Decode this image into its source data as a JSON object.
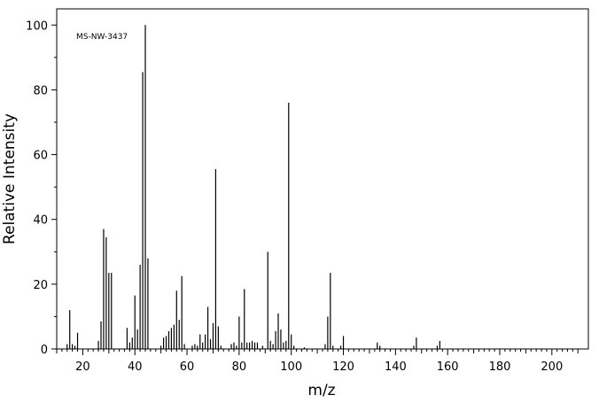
{
  "chart_data": {
    "type": "bar",
    "title": "",
    "annotation": "MS-NW-3437",
    "xlabel": "m/z",
    "ylabel": "Relative Intensity",
    "xlim": [
      10,
      214
    ],
    "ylim": [
      0,
      105
    ],
    "x_ticks": [
      20,
      40,
      60,
      80,
      100,
      120,
      140,
      160,
      180,
      200
    ],
    "y_ticks": [
      0,
      20,
      40,
      60,
      80,
      100
    ],
    "grid": false,
    "legend": "none",
    "colors": {
      "bars": "#000000",
      "axes": "#000000",
      "background": "#ffffff"
    },
    "peaks": {
      "x": [
        14,
        15,
        16,
        17,
        18,
        26,
        27,
        28,
        29,
        30,
        31,
        37,
        38,
        39,
        40,
        41,
        42,
        43,
        44,
        45,
        50,
        51,
        52,
        53,
        54,
        55,
        56,
        57,
        58,
        59,
        62,
        63,
        64,
        65,
        66,
        67,
        68,
        69,
        70,
        71,
        72,
        73,
        77,
        78,
        79,
        80,
        81,
        82,
        83,
        84,
        85,
        86,
        87,
        89,
        91,
        92,
        93,
        94,
        95,
        96,
        97,
        98,
        99,
        100,
        101,
        105,
        113,
        114,
        115,
        116,
        119,
        120,
        133,
        134,
        147,
        148,
        156,
        157
      ],
      "y": [
        1.5,
        12,
        1.5,
        1,
        5,
        2.5,
        8.5,
        37,
        34.5,
        23.5,
        23.5,
        6.5,
        2,
        3.5,
        16.5,
        6,
        26,
        85.5,
        100,
        28,
        1,
        3.5,
        4,
        5.5,
        6.5,
        7.5,
        18,
        9,
        22.5,
        1.5,
        1,
        1.5,
        1,
        4.5,
        2,
        4.5,
        13,
        3,
        8,
        55.5,
        7,
        1,
        1.5,
        2,
        1,
        10,
        2,
        18.5,
        2,
        2,
        2.5,
        2,
        2,
        1,
        30,
        2.5,
        1.5,
        5.5,
        11,
        6,
        2,
        2.5,
        76,
        4.5,
        1,
        0.5,
        1.5,
        10,
        23.5,
        1,
        1,
        4,
        2,
        1,
        1,
        3.5,
        1,
        2.5
      ]
    }
  }
}
